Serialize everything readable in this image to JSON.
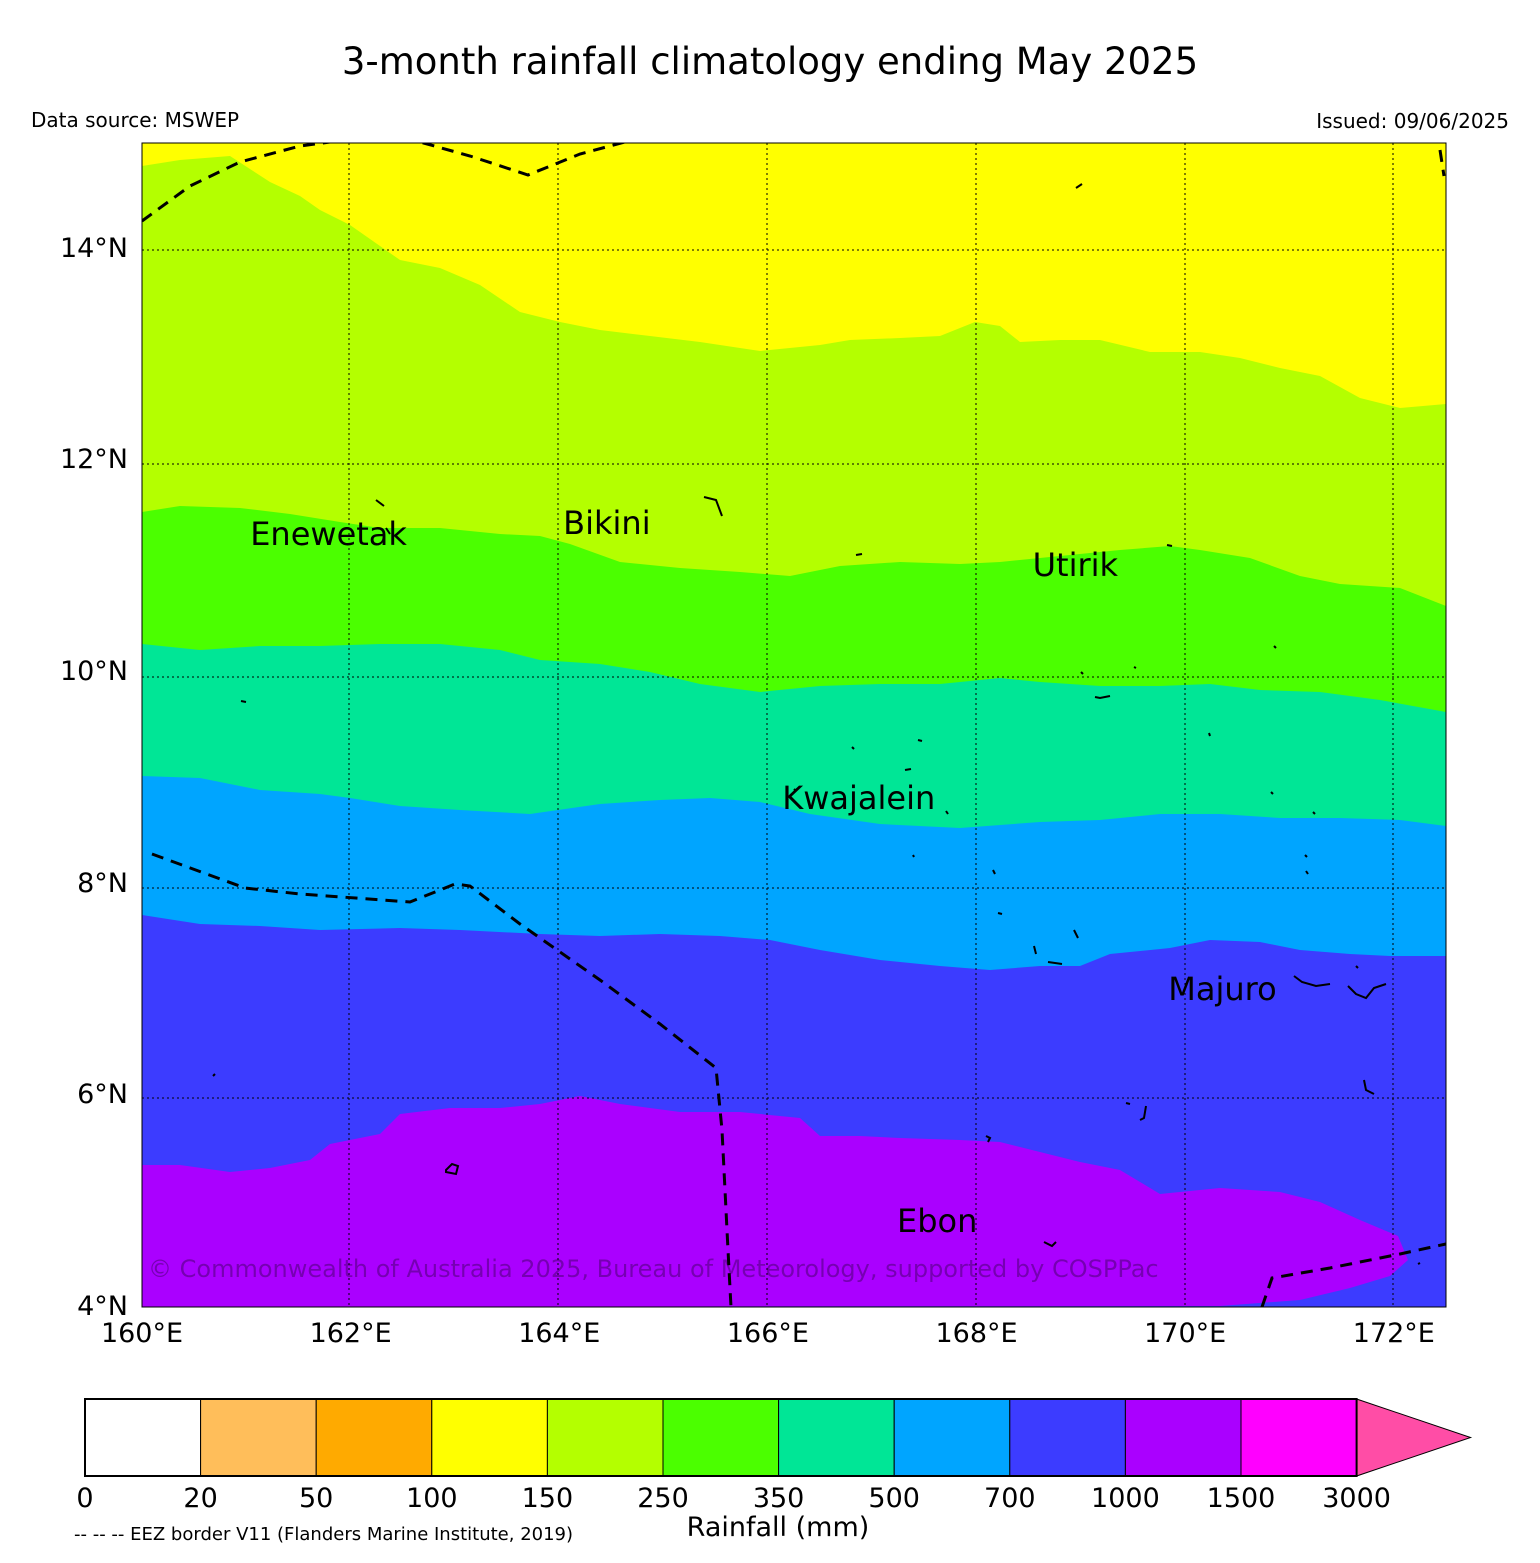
{
  "title": "3-month rainfall climatology ending May 2025",
  "data_source": "Data source: MSWEP",
  "issued": "Issued: 09/06/2025",
  "copyright": "© Commonwealth of Australia 2025, Bureau of Meteorology, supported by COSPPac",
  "eez_note": "-- -- -- EEZ border V11 (Flanders Marine Institute, 2019)",
  "map": {
    "lat_range": [
      4,
      15
    ],
    "lon_range": [
      160,
      172.5
    ],
    "lat_labels": [
      "14°N",
      "12°N",
      "10°N",
      "8°N",
      "6°N",
      "4°N"
    ],
    "lon_labels": [
      "160°E",
      "162°E",
      "164°E",
      "166°E",
      "168°E",
      "170°E",
      "172°E"
    ],
    "gridlines": "dotted",
    "places": [
      {
        "name": "Enewetak",
        "lat": 11.3,
        "lon": 161.9
      },
      {
        "name": "Bikini",
        "lat": 11.4,
        "lon": 164.9
      },
      {
        "name": "Utirik",
        "lat": 11.0,
        "lon": 169.4
      },
      {
        "name": "Kwajalein",
        "lat": 8.8,
        "lon": 167.0
      },
      {
        "name": "Majuro",
        "lat": 7.0,
        "lon": 170.7
      },
      {
        "name": "Ebon",
        "lat": 4.8,
        "lon": 168.1
      }
    ]
  },
  "colorbar": {
    "title": "Rainfall (mm)",
    "ticks": [
      "0",
      "20",
      "50",
      "100",
      "150",
      "250",
      "350",
      "500",
      "700",
      "1000",
      "1500",
      "3000"
    ],
    "colors": [
      "#ffffff",
      "#ffbe5a",
      "#ffaa00",
      "#ffff00",
      "#b4ff00",
      "#4bff00",
      "#00e696",
      "#00a5ff",
      "#3c3cff",
      "#aa00ff",
      "#ff00ff"
    ],
    "extend_color": "#ff4da6"
  }
}
